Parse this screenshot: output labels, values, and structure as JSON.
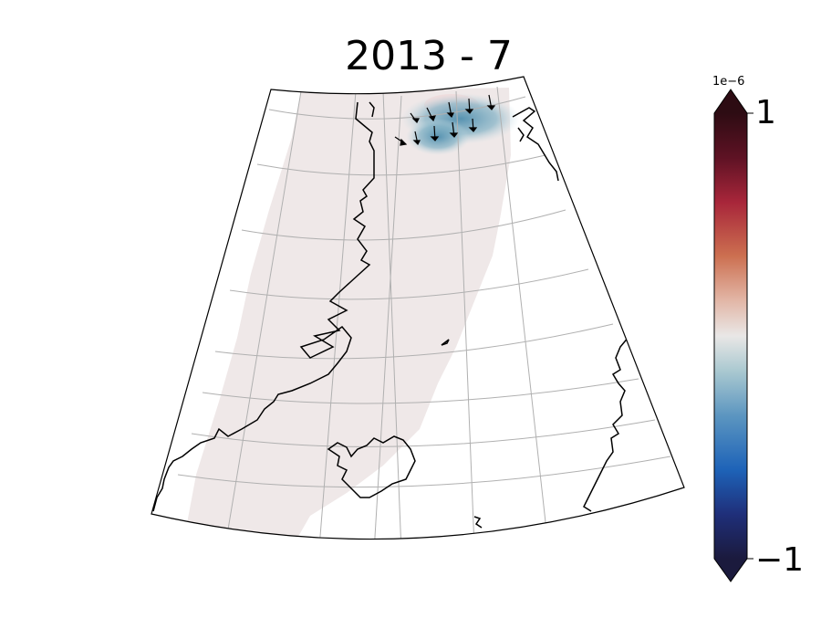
{
  "title": "2013 - 7",
  "colorbar": {
    "exponent_label": "1e−6",
    "max_label": "1",
    "min_label": "−1",
    "colormap": "balance",
    "extend": "both",
    "stops": [
      "#1b1a3d",
      "#1f2f7a",
      "#1e63b8",
      "#5b95c0",
      "#a9c8d0",
      "#e9e7e6",
      "#e2b6a6",
      "#cc6f50",
      "#a8263a",
      "#5e1224",
      "#2d0c13"
    ]
  },
  "map": {
    "projection": "conic",
    "field_colors": {
      "background_anomaly": "#efe8e8",
      "negative_anomaly": "#5b95b3",
      "positive_anomaly": "#f0d8d8"
    },
    "gridlines": true,
    "vectors": "arrows"
  }
}
